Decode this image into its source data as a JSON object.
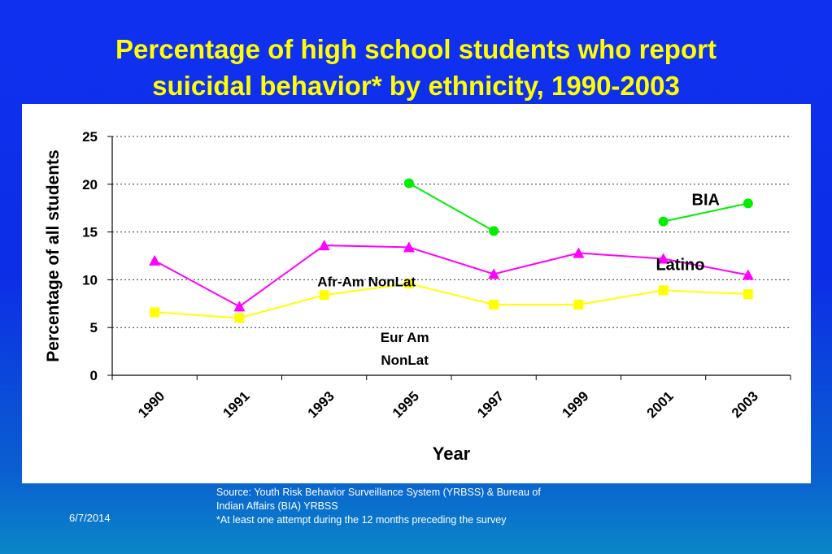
{
  "slide": {
    "title_line1": "Percentage of high school students who report",
    "title_line2": "suicidal behavior* by ethnicity, 1990-2003",
    "source_line1": "Source: Youth Risk Behavior Surveillance System (YRBSS) & Bureau of",
    "source_line2": "Indian Affairs (BIA) YRBSS",
    "source_line3": "*At least one attempt during the 12 months preceding the survey",
    "date": "6/7/2014",
    "title_color": "#ffff00",
    "background_color": "#1030f0"
  },
  "chart_data": {
    "type": "line",
    "xlabel": "Year",
    "ylabel": "Percentage of all students",
    "ylim": [
      0,
      25
    ],
    "yticks": [
      0,
      5,
      10,
      15,
      20,
      25
    ],
    "categories": [
      "1990",
      "1991",
      "1993",
      "1995",
      "1997",
      "1999",
      "2001",
      "2003"
    ],
    "grid": "horizontal dotted",
    "series": [
      {
        "name": "Latino",
        "color": "#ff00ff",
        "marker": "triangle",
        "points": [
          [
            0.5,
            12.0
          ],
          [
            1.5,
            7.2
          ],
          [
            2.5,
            13.6
          ],
          [
            3.5,
            13.4
          ],
          [
            4.5,
            10.6
          ],
          [
            5.5,
            12.8
          ],
          [
            6.5,
            12.2
          ],
          [
            7.5,
            10.5
          ]
        ]
      },
      {
        "name": "Afr-Am NonLat",
        "color": "#ffff00",
        "marker": "square",
        "points": [
          [
            0.5,
            6.6
          ],
          [
            1.5,
            6.0
          ],
          [
            2.5,
            8.4
          ],
          [
            3.5,
            9.6
          ],
          [
            4.5,
            7.4
          ],
          [
            5.5,
            7.4
          ],
          [
            6.5,
            8.9
          ],
          [
            7.5,
            8.5
          ]
        ]
      },
      {
        "name": "BIA",
        "color": "#00ee00",
        "marker": "circle",
        "points": [
          [
            3.5,
            20.1
          ],
          [
            4.5,
            15.1
          ],
          null,
          [
            6.5,
            16.1
          ],
          [
            7.5,
            18.0
          ]
        ]
      }
    ],
    "annotations": [
      {
        "text": "BIA",
        "x": 7.0,
        "y": 17.8
      },
      {
        "text": "Latino",
        "x": 6.7,
        "y": 11.0
      },
      {
        "text": "Afr-Am NonLat",
        "x": 3.0,
        "y": 9.3
      },
      {
        "text": "Eur Am",
        "x": 3.45,
        "y": 3.5
      },
      {
        "text": "NonLat",
        "x": 3.45,
        "y": 1.1
      }
    ]
  }
}
